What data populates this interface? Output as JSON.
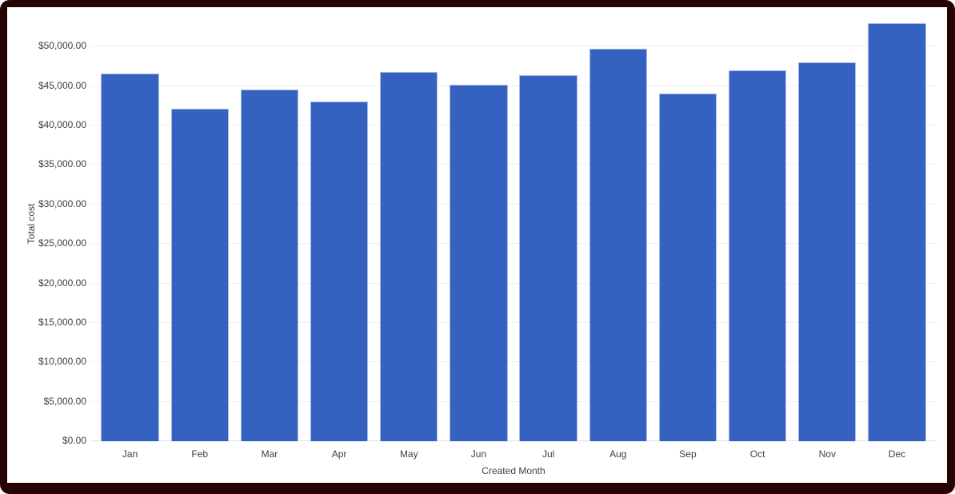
{
  "chart_data": {
    "type": "bar",
    "categories": [
      "Jan",
      "Feb",
      "Mar",
      "Apr",
      "May",
      "Jun",
      "Jul",
      "Aug",
      "Sep",
      "Oct",
      "Nov",
      "Dec"
    ],
    "values": [
      46600,
      42100,
      44600,
      43100,
      46750,
      45200,
      46350,
      49700,
      44100,
      47000,
      48050,
      52950
    ],
    "xlabel": "Created Month",
    "ylabel": "Total cost",
    "ylim": [
      0,
      55000
    ],
    "grid": true,
    "legend": "none",
    "y_ticks": [
      {
        "value": 0,
        "label": "$0.00"
      },
      {
        "value": 5000,
        "label": "$5,000.00"
      },
      {
        "value": 10000,
        "label": "$10,000.00"
      },
      {
        "value": 15000,
        "label": "$15,000.00"
      },
      {
        "value": 20000,
        "label": "$20,000.00"
      },
      {
        "value": 25000,
        "label": "$25,000.00"
      },
      {
        "value": 30000,
        "label": "$30,000.00"
      },
      {
        "value": 35000,
        "label": "$35,000.00"
      },
      {
        "value": 40000,
        "label": "$40,000.00"
      },
      {
        "value": 45000,
        "label": "$45,000.00"
      },
      {
        "value": 50000,
        "label": "$50,000.00"
      }
    ],
    "colors": {
      "bar_fill": "#3561c1",
      "bar_stroke": "#a9bae8",
      "gridline": "#efefef",
      "baseline": "#dbdfe8",
      "tick_text": "#3c4043",
      "axis_title_text": "#424242",
      "frame_border": "#260404",
      "chart_background": "#ffffff"
    }
  }
}
